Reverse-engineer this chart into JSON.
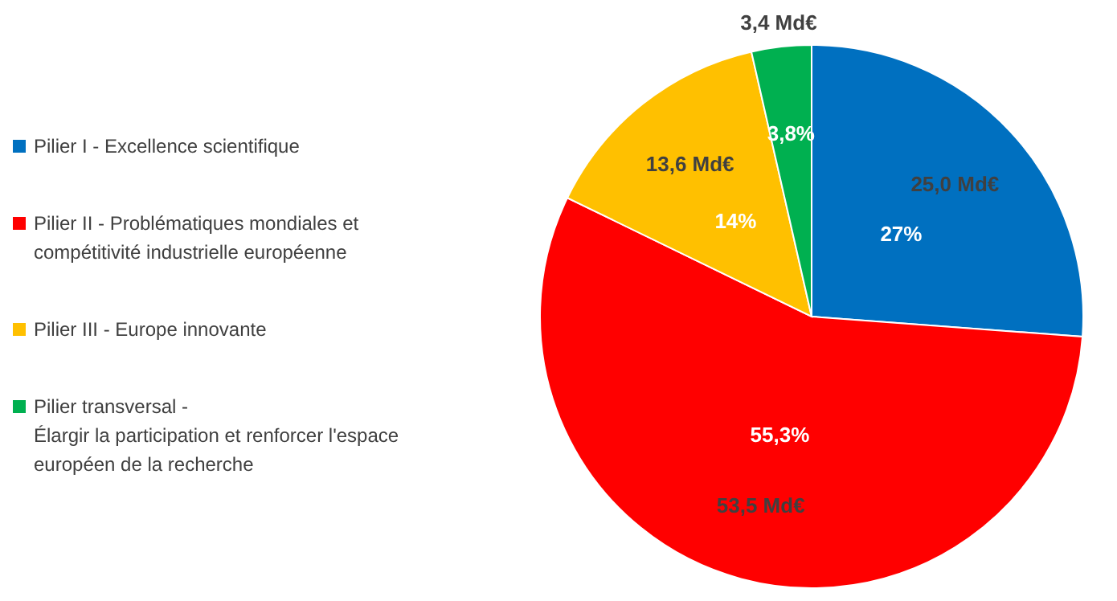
{
  "chart_data": {
    "type": "pie",
    "categories": [
      "Pilier I - Excellence scientifique",
      "Pilier II - Problématiques mondiales et\ncompétitivité industrielle européenne",
      "Pilier III - Europe innovante",
      "Pilier transversal -\nÉlargir la participation et renforcer l'espace\neuropéen de la recherche"
    ],
    "values": [
      25.0,
      53.5,
      13.6,
      3.4
    ],
    "value_labels": [
      "25,0 Md€",
      "53,5 Md€",
      "13,6 Md€",
      "3,4 Md€"
    ],
    "annotations": [
      "27%",
      "55,3%",
      "14%",
      "3,8%"
    ],
    "colors": [
      "#0070c0",
      "#ff0000",
      "#ffc000",
      "#00b050"
    ],
    "legend": "left"
  }
}
